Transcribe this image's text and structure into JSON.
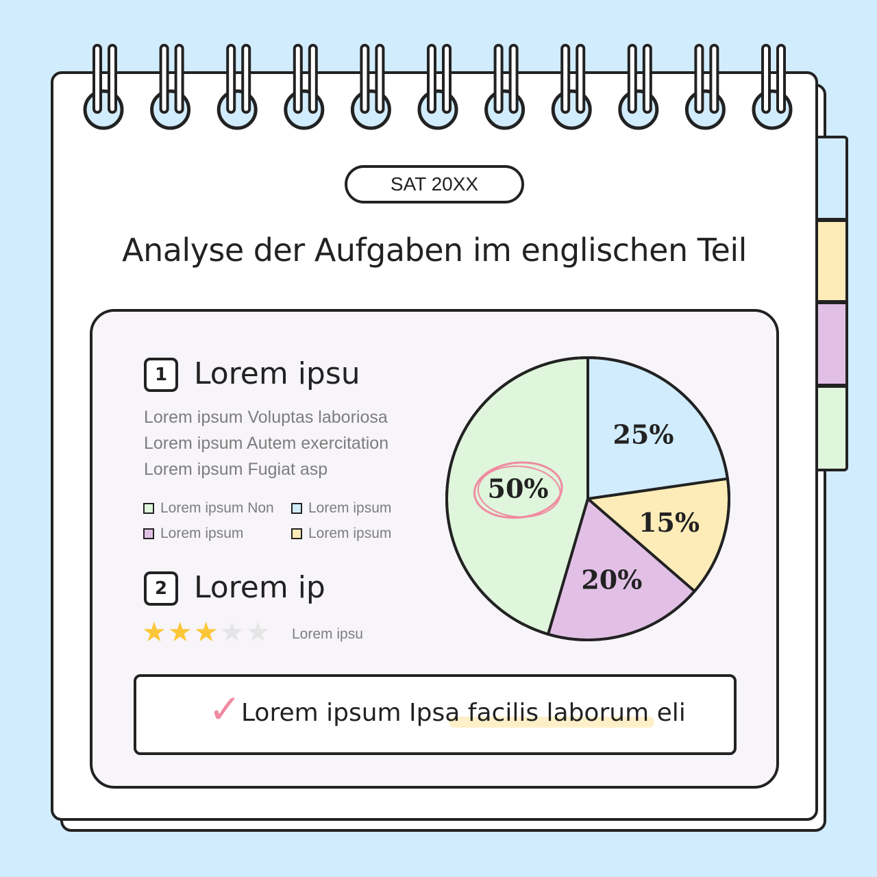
{
  "badge": {
    "date": "SAT 20XX"
  },
  "title": "Analyse der Aufgaben im englischen Teil",
  "section1": {
    "number": "1",
    "title": "Lorem ipsu",
    "lines": [
      "Lorem ipsum Voluptas laboriosa",
      "Lorem ipsum Autem exercitation",
      "Lorem ipsum Fugiat asp"
    ]
  },
  "legend": [
    {
      "label": "Lorem ipsum Non",
      "color": "#dff5dc"
    },
    {
      "label": "Lorem ipsum",
      "color": "#d1ecfc"
    },
    {
      "label": "Lorem ipsum",
      "color": "#e2c0e6"
    },
    {
      "label": "Lorem ipsum",
      "color": "#fdecb8"
    }
  ],
  "section2": {
    "number": "2",
    "title": "Lorem ip",
    "rating": {
      "value": 3,
      "max": 5,
      "label": "Lorem ipsu"
    }
  },
  "note": {
    "check": "✓",
    "text": "Lorem ipsum Ipsa facilis laborum eli"
  },
  "colors": {
    "green": "#dff5dc",
    "blue": "#d1ecfc",
    "yellow": "#fdecb8",
    "purple": "#e2c0e6",
    "pink": "#f08aa0",
    "star": "#fbc637",
    "star_off": "#e5e5e5"
  },
  "chart_data": {
    "type": "pie",
    "slices": [
      {
        "value": 25,
        "label": "25%",
        "color": "#d1ecfc"
      },
      {
        "value": 15,
        "label": "15%",
        "color": "#fdecb8"
      },
      {
        "value": 20,
        "label": "20%",
        "color": "#e2c0e6"
      },
      {
        "value": 50,
        "label": "50%",
        "color": "#dff5dc"
      }
    ],
    "highlighted": "50%"
  }
}
